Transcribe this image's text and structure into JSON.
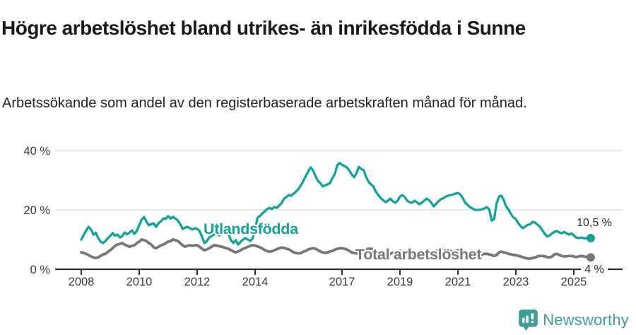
{
  "chart_data": {
    "type": "line",
    "title": "Högre arbetslöshet bland utrikes- än inrikesfödda i Sunne",
    "subtitle": "Arbetssökande som andel av den registerbaserade arbetskraften månad för månad.",
    "unit": "percent of registered labour force, monthly",
    "x_start_year": 2008,
    "x_end": "2025-08",
    "months_per_point": 1,
    "x_tick_labels": [
      "2008",
      "2010",
      "2012",
      "2014",
      "2017",
      "2019",
      "2021",
      "2023",
      "2025"
    ],
    "y_ticks": [
      {
        "value": 0,
        "label": "0 %"
      },
      {
        "value": 20,
        "label": "20 %"
      },
      {
        "value": 40,
        "label": "40 %"
      }
    ],
    "ylim": [
      0,
      45
    ],
    "grid": "horizontal",
    "legend_position": "inline-labels-on-lines",
    "series": [
      {
        "name": "Utlandsfödda",
        "color": "#12a296",
        "end_label": "10,5 %",
        "end_value": 10.5,
        "values": [
          10.0,
          11.5,
          13.0,
          14.3,
          13.5,
          11.7,
          12.3,
          10.5,
          9.3,
          8.8,
          9.5,
          10.5,
          11.2,
          12.2,
          11.3,
          11.7,
          10.7,
          11.2,
          12.4,
          11.8,
          12.4,
          13.1,
          11.9,
          12.9,
          14.8,
          16.7,
          17.6,
          16.0,
          14.8,
          15.2,
          15.5,
          14.3,
          15.5,
          16.2,
          17.1,
          17.0,
          17.9,
          17.1,
          17.6,
          17.1,
          16.4,
          15.2,
          13.6,
          14.0,
          14.3,
          13.8,
          13.4,
          13.8,
          13.6,
          12.9,
          11.0,
          8.8,
          9.5,
          10.7,
          11.2,
          11.7,
          12.1,
          11.4,
          11.9,
          12.4,
          12.6,
          11.9,
          9.8,
          8.8,
          9.8,
          8.3,
          9.3,
          10.0,
          10.5,
          10.0,
          9.5,
          10.5,
          13.5,
          17.3,
          18.0,
          18.8,
          19.5,
          20.3,
          20.7,
          20.3,
          21.0,
          20.7,
          21.5,
          22.3,
          23.8,
          24.3,
          25.0,
          24.8,
          25.5,
          26.2,
          27.1,
          28.3,
          29.8,
          31.4,
          33.0,
          34.3,
          33.3,
          31.4,
          29.8,
          29.0,
          27.9,
          28.3,
          28.6,
          29.0,
          30.7,
          32.1,
          35.0,
          35.8,
          35.2,
          34.8,
          34.3,
          33.3,
          31.9,
          31.0,
          32.4,
          34.5,
          33.8,
          33.3,
          31.0,
          29.5,
          28.6,
          27.9,
          26.2,
          25.0,
          24.0,
          23.3,
          22.6,
          23.1,
          23.8,
          22.9,
          22.4,
          23.1,
          24.5,
          25.0,
          24.3,
          23.1,
          22.6,
          22.4,
          23.1,
          22.6,
          21.9,
          22.4,
          23.1,
          23.8,
          23.3,
          22.4,
          21.2,
          22.1,
          22.9,
          23.6,
          24.0,
          24.5,
          24.8,
          25.0,
          25.2,
          25.5,
          25.7,
          25.2,
          24.0,
          22.4,
          21.7,
          20.9,
          20.5,
          20.0,
          20.0,
          20.0,
          20.2,
          20.5,
          20.9,
          20.2,
          16.4,
          16.9,
          22.1,
          24.5,
          24.8,
          23.3,
          21.2,
          20.0,
          18.6,
          17.4,
          16.9,
          15.5,
          14.5,
          13.8,
          14.5,
          15.0,
          15.2,
          16.0,
          15.7,
          15.0,
          14.3,
          13.1,
          11.9,
          11.0,
          11.4,
          12.1,
          12.6,
          12.9,
          12.4,
          12.1,
          12.6,
          12.1,
          11.7,
          12.1,
          11.4,
          10.7,
          10.5,
          10.7,
          10.5,
          10.4,
          10.6,
          10.5
        ]
      },
      {
        "name": "Total arbetslöshet",
        "color": "#77777b",
        "end_label": "4 %",
        "end_value": 4.0,
        "values": [
          5.7,
          5.5,
          5.2,
          4.8,
          4.3,
          4.0,
          3.8,
          4.0,
          4.5,
          5.0,
          5.2,
          5.9,
          6.4,
          7.1,
          7.9,
          8.3,
          8.6,
          8.8,
          8.3,
          7.9,
          7.6,
          7.9,
          8.1,
          8.8,
          9.3,
          10.0,
          9.8,
          9.5,
          8.8,
          8.3,
          7.4,
          7.1,
          7.6,
          8.1,
          8.3,
          8.8,
          9.3,
          9.5,
          10.0,
          9.8,
          9.5,
          8.8,
          8.1,
          7.6,
          7.9,
          8.1,
          7.9,
          8.1,
          8.1,
          7.6,
          6.9,
          6.4,
          6.7,
          7.1,
          7.6,
          8.1,
          8.0,
          7.8,
          7.6,
          7.4,
          7.1,
          6.9,
          6.4,
          6.0,
          5.7,
          6.0,
          6.4,
          6.9,
          7.2,
          7.6,
          7.9,
          8.1,
          8.0,
          7.7,
          7.4,
          7.0,
          6.5,
          6.1,
          5.9,
          6.1,
          6.4,
          6.8,
          7.1,
          7.3,
          7.2,
          6.9,
          6.7,
          6.2,
          5.7,
          5.5,
          5.3,
          5.5,
          5.9,
          6.2,
          6.7,
          6.9,
          7.1,
          6.9,
          6.5,
          6.0,
          5.7,
          5.5,
          5.7,
          6.0,
          6.2,
          6.6,
          6.9,
          7.1,
          7.1,
          6.9,
          6.7,
          6.2,
          5.7,
          5.5,
          5.3,
          5.7,
          6.0,
          6.4,
          6.7,
          6.9,
          6.9,
          6.7,
          6.2,
          5.7,
          5.2,
          5.0,
          4.8,
          5.0,
          5.2,
          5.5,
          5.7,
          6.0,
          6.2,
          6.0,
          5.7,
          5.5,
          5.2,
          5.0,
          5.2,
          5.0,
          4.8,
          5.0,
          5.2,
          5.5,
          5.7,
          5.5,
          5.7,
          6.2,
          6.4,
          6.7,
          6.9,
          6.7,
          6.4,
          6.2,
          6.0,
          6.2,
          6.4,
          6.2,
          6.0,
          5.7,
          5.5,
          5.2,
          5.0,
          4.8,
          4.8,
          4.8,
          5.0,
          5.2,
          5.2,
          5.0,
          4.8,
          4.5,
          4.8,
          5.7,
          5.9,
          5.7,
          5.5,
          5.2,
          5.0,
          4.8,
          4.8,
          4.5,
          4.3,
          4.0,
          3.8,
          3.6,
          3.6,
          3.8,
          4.0,
          4.3,
          4.5,
          4.5,
          4.3,
          4.1,
          4.0,
          4.3,
          5.0,
          5.2,
          4.8,
          4.5,
          4.3,
          4.3,
          4.5,
          4.5,
          4.3,
          4.1,
          4.3,
          4.5,
          4.3,
          4.2,
          4.1,
          4.0
        ]
      }
    ],
    "colors": {
      "accent_teal": "#12a296",
      "series_gray": "#77777b",
      "axis": "#2e2e2e",
      "grid": "#d9d9d9",
      "tick_text": "#3a3a3a",
      "annotation_text": "#2b2b2b"
    }
  },
  "footer": {
    "brand": "Newsworthy",
    "brand_color": "#3f9e98"
  }
}
